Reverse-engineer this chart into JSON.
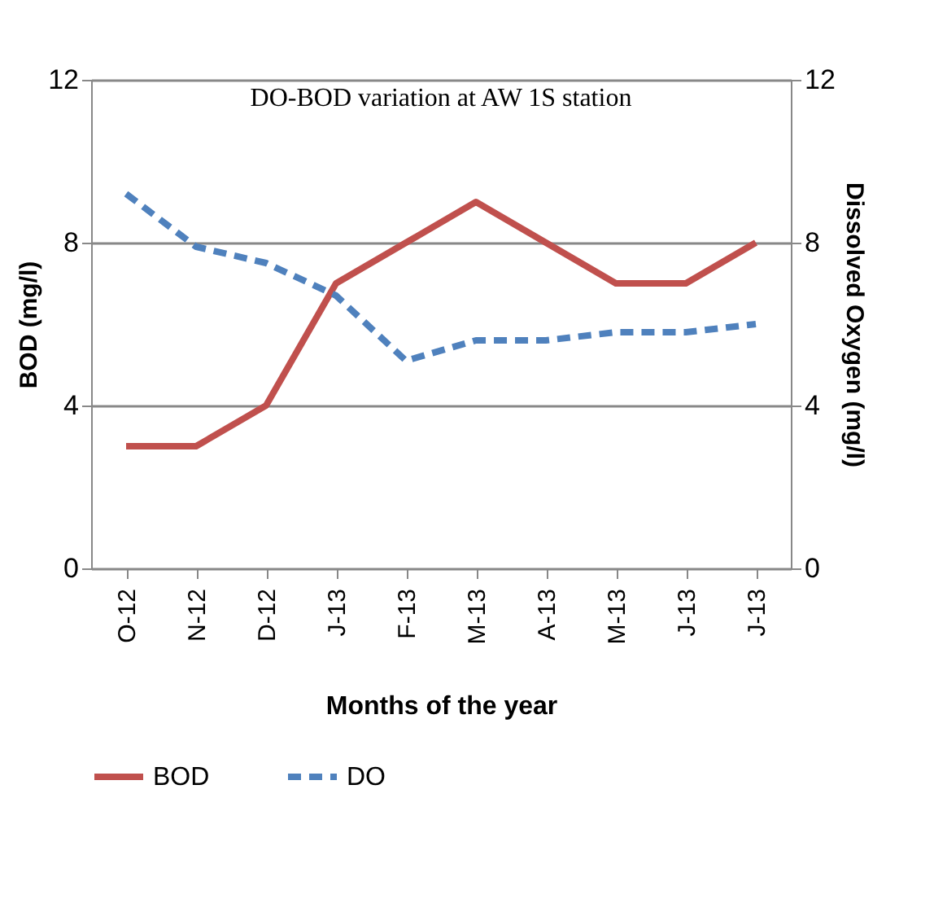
{
  "chart_data": {
    "type": "line",
    "title": "DO-BOD variation at AW 1S station",
    "xlabel": "Months of the year",
    "ylabel": "BOD (mg/l)",
    "y2label": "Dissolved Oxygen (mg/l)",
    "categories": [
      "O-12",
      "N-12",
      "D-12",
      "J-13",
      "F-13",
      "M-13",
      "A-13",
      "M-13",
      "J-13",
      "J-13"
    ],
    "series": [
      {
        "name": "BOD",
        "color": "#c0504d",
        "line_style": "solid",
        "values": [
          3,
          3,
          4,
          7,
          8,
          9,
          8,
          7,
          7,
          8
        ]
      },
      {
        "name": "DO",
        "color": "#4f81bd",
        "line_style": "dashed",
        "axis": "y2",
        "values": [
          9.2,
          7.9,
          7.5,
          6.7,
          5.1,
          5.6,
          5.6,
          5.8,
          5.8,
          6.0
        ]
      }
    ],
    "ylim": [
      0,
      12
    ],
    "yticks": [
      0,
      4,
      8,
      12
    ],
    "y2lim": [
      0,
      12
    ],
    "y2ticks": [
      0,
      4,
      8,
      12
    ],
    "grid": "y",
    "legend": "bottom",
    "marker": "none"
  }
}
